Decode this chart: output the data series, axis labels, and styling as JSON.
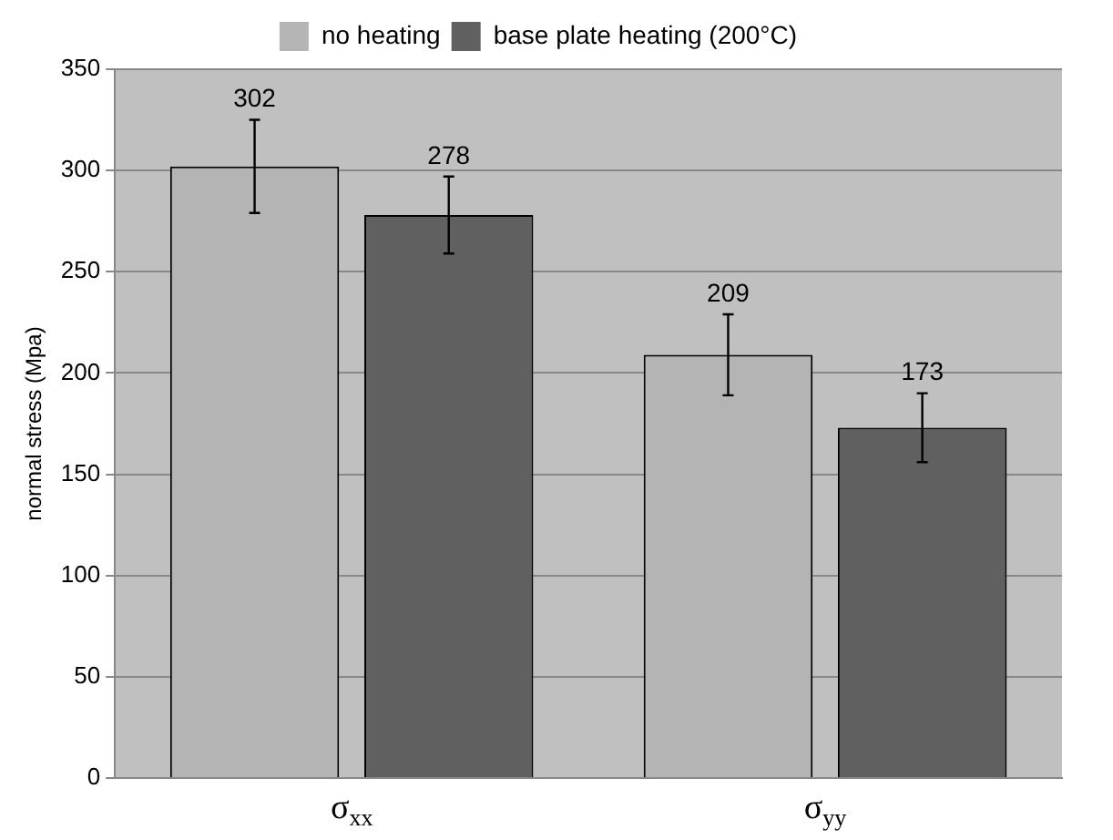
{
  "chart_data": {
    "type": "bar",
    "ylabel": "normal stress (Mpa)",
    "categories": [
      "σ$_{xx}$",
      "σ$_{yy}$"
    ],
    "series": [
      {
        "name": "no heating",
        "color": "#b4b4b4",
        "values": [
          302,
          209
        ],
        "errors": [
          23,
          20
        ]
      },
      {
        "name": "base plate heating (200°C)",
        "color": "#606060",
        "values": [
          278,
          173
        ],
        "errors": [
          19,
          17
        ]
      }
    ],
    "ylim": [
      0,
      350
    ],
    "yticks": [
      0,
      50,
      100,
      150,
      200,
      250,
      300,
      350
    ],
    "grid": "y",
    "legend": "top",
    "data_labels": true
  }
}
